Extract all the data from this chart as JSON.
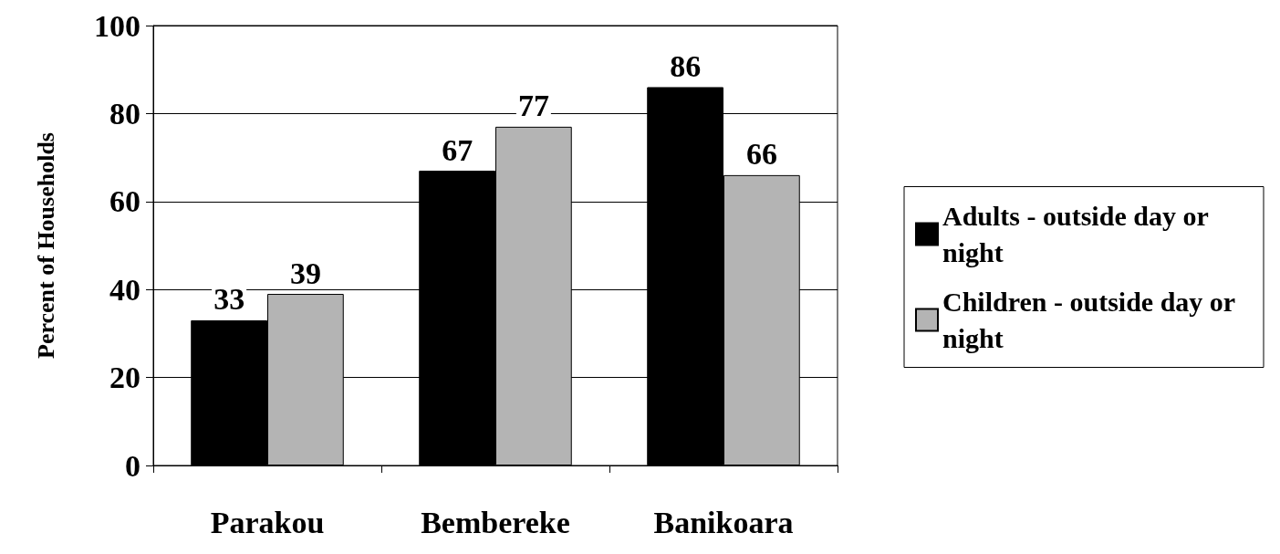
{
  "chart_data": {
    "type": "bar",
    "ylabel": "Percent of Households",
    "categories": [
      "Parakou",
      "Bembereke",
      "Banikoara"
    ],
    "series": [
      {
        "name": "Adults - outside day or night",
        "color": "#000000",
        "values": [
          33,
          67,
          86
        ]
      },
      {
        "name": "Children - outside day or night",
        "color": "#b4b4b4",
        "values": [
          39,
          77,
          66
        ]
      }
    ],
    "ylim": [
      0,
      100
    ],
    "yticks": [
      0,
      20,
      40,
      60,
      80,
      100
    ],
    "grid": "y",
    "legend": "right",
    "data_labels": true
  }
}
